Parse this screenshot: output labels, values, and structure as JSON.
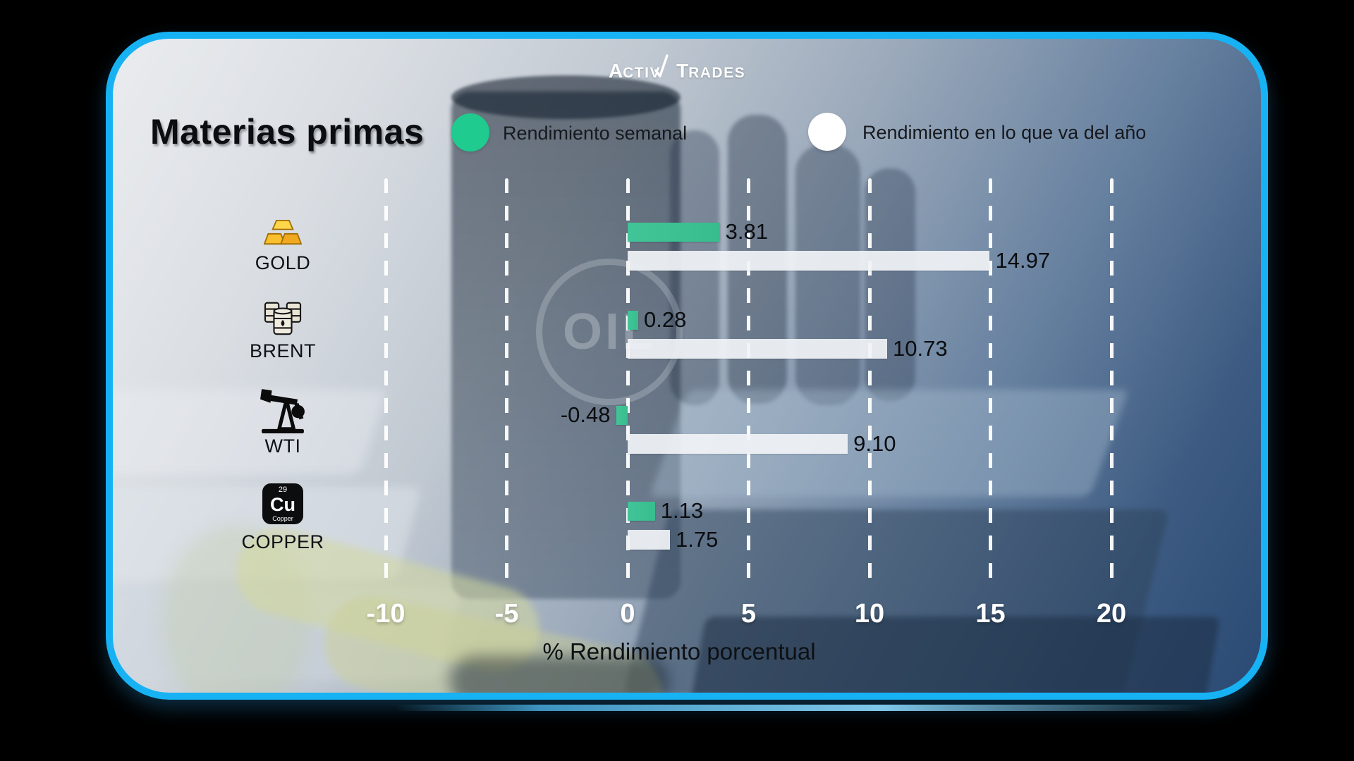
{
  "brand": {
    "name": "ActivTrades",
    "logo_part1_big": "A",
    "logo_part1_small": "CTIV",
    "logo_part2_big": "T",
    "logo_part2_small": "RADES"
  },
  "header": {
    "title": "Materias primas",
    "legend": [
      {
        "label": "Rendimiento semanal",
        "color": "#1fcb8e"
      },
      {
        "label": "Rendimiento en lo que va del año",
        "color": "#ffffff"
      }
    ]
  },
  "chart_data": {
    "type": "bar",
    "orientation": "horizontal",
    "title": "Materias primas",
    "categories": [
      "GOLD",
      "BRENT",
      "WTI",
      "COPPER"
    ],
    "series": [
      {
        "name": "Rendimiento semanal",
        "color": "#3cc094",
        "values": [
          3.81,
          0.28,
          -0.48,
          1.13
        ],
        "labels": [
          "3.81",
          "0.28",
          "-0.48",
          "1.13"
        ]
      },
      {
        "name": "Rendimiento en lo que va del año",
        "color": "#f1f3f6",
        "values": [
          14.97,
          10.73,
          9.1,
          1.75
        ],
        "labels": [
          "14.97",
          "10.73",
          "9.10",
          "1.75"
        ]
      }
    ],
    "xlabel": "% Rendimiento porcentual",
    "xticks": [
      -10,
      -5,
      0,
      5,
      10,
      15,
      20
    ],
    "xtick_labels": [
      "-10",
      "-5",
      "0",
      "5",
      "10",
      "15",
      "20"
    ],
    "xlim": [
      -12.5,
      22.5
    ],
    "grid": "vertical-dashed-white",
    "legend_position": "top"
  },
  "icons": {
    "gold": "gold-bars",
    "brent": "oil-barrels",
    "wti": "pump-jack",
    "copper": {
      "number": "29",
      "symbol": "Cu",
      "caption": "Copper"
    }
  },
  "background": {
    "oil_watermark": "OIL"
  }
}
